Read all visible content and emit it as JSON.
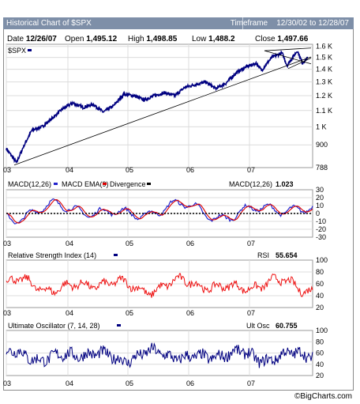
{
  "header": {
    "title": "Historical Chart of $SPX",
    "timeframe_label": "Timeframe",
    "timeframe_value": "12/30/02 to 12/28/07",
    "date_label": "Date",
    "date_value": "12/26/07",
    "open_label": "Open",
    "open_value": "1,495.12",
    "high_label": "High",
    "high_value": "1,498.85",
    "low_label": "Low",
    "low_value": "1,488.2",
    "close_label": "Close",
    "close_value": "1,497.66"
  },
  "footer": {
    "credit": "©BigCharts.com"
  },
  "colors": {
    "price": "#000080",
    "macd": "#2222cc",
    "ema": "#dd0000",
    "rsi": "#ee1111",
    "uo": "#000080",
    "grid": "#dcdcdc"
  },
  "chart_data": [
    {
      "type": "line",
      "title": "",
      "legend": "$SPX",
      "x_ticks": [
        "03",
        "04",
        "05",
        "06",
        "07"
      ],
      "y_ticks": [
        "788",
        "900",
        "1 K",
        "1.1 K",
        "1.2 K",
        "1.3 K",
        "1.4 K",
        "1.5 K",
        "1.6 K"
      ],
      "y_scale": "log",
      "ylim": [
        788,
        1620
      ],
      "series": [
        {
          "name": "$SPX",
          "x": [
            "2003-01",
            "2003-03",
            "2003-04",
            "2003-06",
            "2003-08",
            "2003-10",
            "2003-12",
            "2004-02",
            "2004-04",
            "2004-06",
            "2004-08",
            "2004-10",
            "2004-12",
            "2005-02",
            "2005-04",
            "2005-06",
            "2005-08",
            "2005-10",
            "2005-12",
            "2006-02",
            "2006-04",
            "2006-06",
            "2006-08",
            "2006-10",
            "2006-12",
            "2007-02",
            "2007-03",
            "2007-05",
            "2007-07",
            "2007-08",
            "2007-10",
            "2007-11",
            "2007-12"
          ],
          "values": [
            880,
            810,
            870,
            980,
            1000,
            1050,
            1110,
            1150,
            1120,
            1140,
            1090,
            1130,
            1210,
            1200,
            1170,
            1200,
            1220,
            1200,
            1260,
            1280,
            1300,
            1250,
            1290,
            1370,
            1420,
            1450,
            1390,
            1500,
            1540,
            1430,
            1560,
            1450,
            1497
          ]
        }
      ]
    },
    {
      "type": "line",
      "title": "MACD(12,26)",
      "legend": [
        "MACD(12,26)",
        "MACD EMA(9)",
        "Divergence"
      ],
      "readout_label": "MACD(12,26)",
      "readout_value": "1.023",
      "x_ticks": [
        "03",
        "04",
        "05",
        "06",
        "07"
      ],
      "y_ticks": [
        "30",
        "20",
        "10",
        "0",
        "-10",
        "-20",
        "-30"
      ],
      "ylim": [
        -30,
        30
      ]
    },
    {
      "type": "line",
      "title": "Relative Strength Index (14)",
      "readout_label": "RSI",
      "readout_value": "55.654",
      "x_ticks": [
        "03",
        "04",
        "05",
        "06",
        "07"
      ],
      "y_ticks": [
        "100",
        "80",
        "60",
        "40",
        "20"
      ],
      "ylim": [
        20,
        100
      ]
    },
    {
      "type": "line",
      "title": "Ultimate Oscillator (7, 14, 28)",
      "readout_label": "Ult Osc",
      "readout_value": "60.755",
      "x_ticks": [
        "03",
        "04",
        "05",
        "06",
        "07"
      ],
      "y_ticks": [
        "100",
        "80",
        "60",
        "40",
        "20"
      ],
      "ylim": [
        20,
        100
      ]
    }
  ]
}
